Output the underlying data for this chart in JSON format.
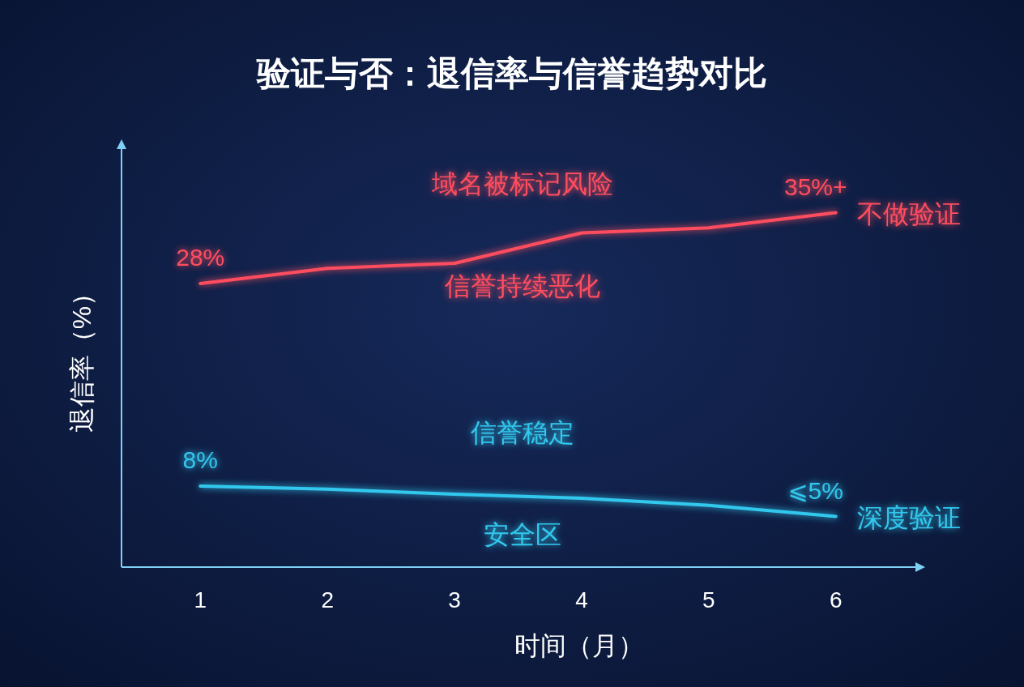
{
  "chart_data": {
    "type": "line",
    "title": "验证与否：退信率与信誉趋势对比",
    "xlabel": "时间（月）",
    "ylabel": "退信率（%）",
    "x": [
      1,
      2,
      3,
      4,
      5,
      6
    ],
    "xlim": [
      0.38,
      6.69
    ],
    "xticks": [
      1,
      2,
      3,
      4,
      5,
      6
    ],
    "ylim": [
      0,
      42
    ],
    "series": [
      {
        "name": "不做验证",
        "color": "#ff4d5e",
        "values": [
          28,
          29.5,
          30,
          33,
          33.5,
          35
        ],
        "value_labels": [
          "28%",
          null,
          null,
          null,
          null,
          "35%+"
        ]
      },
      {
        "name": "深度验证",
        "color": "#33c8ee",
        "values": [
          8,
          7.7,
          7.2,
          6.8,
          6.1,
          5
        ],
        "value_labels": [
          "8%",
          null,
          null,
          null,
          null,
          "⩽5%"
        ]
      }
    ],
    "annotations": [
      "域名被标记风险",
      "信誉持续恶化",
      "信誉稳定",
      "安全区"
    ]
  }
}
